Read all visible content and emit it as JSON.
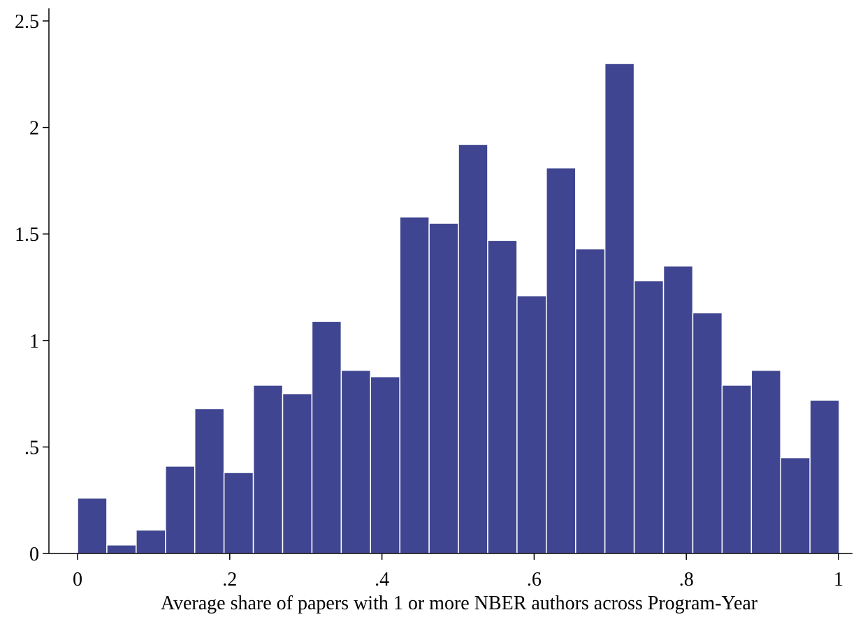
{
  "chart_data": {
    "type": "bar",
    "subtype": "histogram",
    "title": "",
    "xlabel": "Average share of papers with 1 or more NBER authors across Program-Year",
    "ylabel": "",
    "xlim": [
      0,
      1
    ],
    "ylim": [
      0,
      2.5
    ],
    "x_ticks": [
      {
        "value": 0,
        "label": "0"
      },
      {
        "value": 0.2,
        "label": ".2"
      },
      {
        "value": 0.4,
        "label": ".4"
      },
      {
        "value": 0.6,
        "label": ".6"
      },
      {
        "value": 0.8,
        "label": ".8"
      },
      {
        "value": 1,
        "label": "1"
      }
    ],
    "y_ticks": [
      {
        "value": 0,
        "label": "0"
      },
      {
        "value": 0.5,
        "label": ".5"
      },
      {
        "value": 1,
        "label": "1"
      },
      {
        "value": 1.5,
        "label": "1.5"
      },
      {
        "value": 2,
        "label": "2"
      },
      {
        "value": 2.5,
        "label": "2.5"
      }
    ],
    "grid": false,
    "bar_color": "#3f4590",
    "bin_start": 0,
    "bin_width": 0.0385,
    "values": [
      0.26,
      0.04,
      0.11,
      0.41,
      0.68,
      0.38,
      0.79,
      0.75,
      1.09,
      0.86,
      0.83,
      1.58,
      1.55,
      1.92,
      1.47,
      1.21,
      1.81,
      1.43,
      2.3,
      1.28,
      1.35,
      1.13,
      0.79,
      0.86,
      0.45,
      0.72
    ]
  }
}
